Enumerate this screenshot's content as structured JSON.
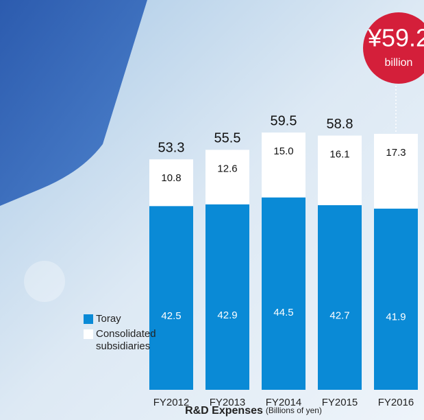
{
  "chart_data": {
    "type": "stacked-bar",
    "title": "R&D Expenses",
    "subtitle": "(Billions of yen)",
    "categories": [
      "FY2012",
      "FY2013",
      "FY2014",
      "FY2015",
      "FY2016"
    ],
    "series": [
      {
        "name": "Toray",
        "color": "#0a8ad6",
        "values": [
          42.5,
          42.9,
          44.5,
          42.7,
          41.9
        ]
      },
      {
        "name": "Consolidated subsidiaries",
        "color": "#ffffff",
        "values": [
          10.8,
          12.6,
          15.0,
          16.1,
          17.3
        ],
        "value_labels": [
          "10.8",
          "12.6",
          "15.0",
          "16.1",
          "17.3"
        ]
      }
    ],
    "totals": [
      53.3,
      55.5,
      59.5,
      58.8,
      null
    ],
    "callout": {
      "value": 59.2,
      "label": "¥59.2",
      "unit": "billion",
      "color": "#d41f3a"
    }
  }
}
